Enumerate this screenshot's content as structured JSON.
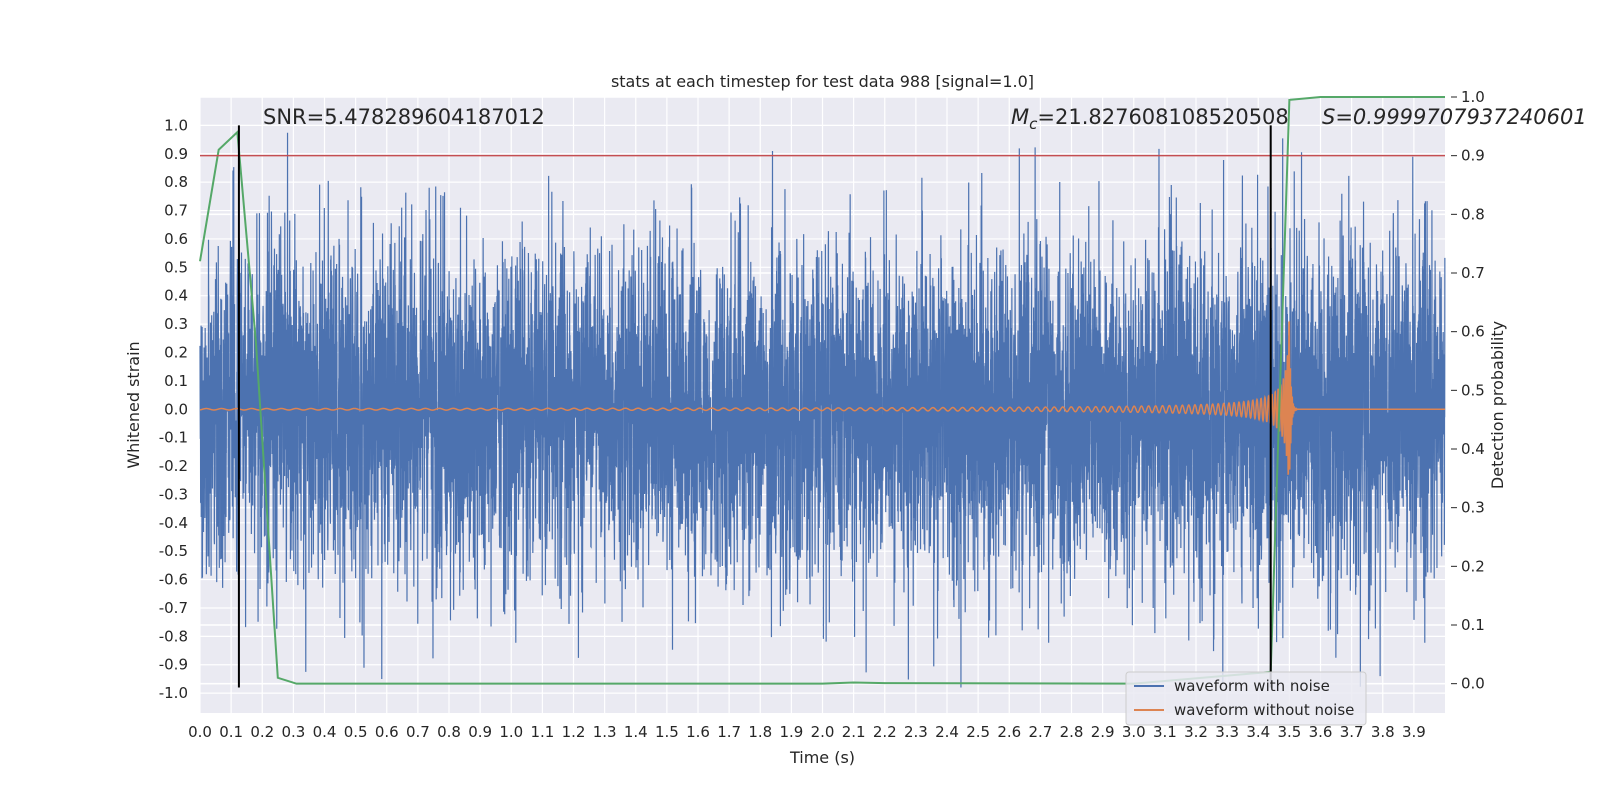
{
  "chart_data": {
    "type": "line",
    "title": "stats at each timestep for test data 988 [signal=1.0]",
    "xlabel": "Time (s)",
    "ylabel_left": "Whitened strain",
    "ylabel_right": "Detection probability",
    "xlim": [
      0.0,
      4.0
    ],
    "ylim_left": [
      -1.07,
      1.1
    ],
    "ylim_right": [
      -0.05,
      1.0
    ],
    "x_ticks": [
      "0.0",
      "0.1",
      "0.2",
      "0.3",
      "0.4",
      "0.5",
      "0.6",
      "0.7",
      "0.8",
      "0.9",
      "1.0",
      "1.1",
      "1.2",
      "1.3",
      "1.4",
      "1.5",
      "1.6",
      "1.7",
      "1.8",
      "1.9",
      "2.0",
      "2.1",
      "2.2",
      "2.3",
      "2.4",
      "2.5",
      "2.6",
      "2.7",
      "2.8",
      "2.9",
      "3.0",
      "3.1",
      "3.2",
      "3.3",
      "3.4",
      "3.5",
      "3.6",
      "3.7",
      "3.8",
      "3.9"
    ],
    "y_ticks_left": [
      "1.0",
      "0.9",
      "0.8",
      "0.7",
      "0.6",
      "0.5",
      "0.4",
      "0.3",
      "0.2",
      "0.1",
      "0.0",
      "-0.1",
      "-0.2",
      "-0.3",
      "-0.4",
      "-0.5",
      "-0.6",
      "-0.7",
      "-0.8",
      "-0.9",
      "-1.0"
    ],
    "y_ticks_right": [
      "1.0",
      "0.9",
      "0.8",
      "0.7",
      "0.6",
      "0.5",
      "0.4",
      "0.3",
      "0.2",
      "0.1",
      "0.0"
    ],
    "grid": true,
    "legend_position": "lower-right",
    "series": [
      {
        "name": "waveform with noise",
        "axis": "left",
        "color": "#4c72b0",
        "kind": "noise",
        "sample_rate": 2048,
        "amplitude_range": [
          -0.98,
          1.0
        ]
      },
      {
        "name": "waveform without noise",
        "axis": "left",
        "color": "#dd8452",
        "kind": "chirp",
        "merger_time": 3.5,
        "peak_amplitude": 0.31
      },
      {
        "axis": "right",
        "color": "#55a868",
        "x": [
          0.0,
          0.06,
          0.12,
          0.18,
          0.25,
          0.31,
          1.0,
          2.0,
          2.1,
          2.2,
          3.0,
          3.44,
          3.5,
          3.6,
          3.7,
          4.0
        ],
        "y": [
          0.72,
          0.91,
          0.94,
          0.58,
          0.01,
          0.0,
          0.0,
          0.0,
          0.002,
          0.001,
          0.0,
          0.02,
          0.995,
          1.0,
          1.0,
          1.0
        ]
      }
    ],
    "threshold_line": {
      "y": 0.9,
      "axis": "right",
      "color": "#c44e52"
    },
    "vertical_markers": [
      {
        "x": 0.125,
        "y_range": [
          -0.98,
          1.0
        ],
        "color": "#000000"
      },
      {
        "x": 3.44,
        "y_range": [
          -0.98,
          1.0
        ],
        "color": "#000000"
      }
    ],
    "annotations": {
      "snr": "SNR=5.478289604187012",
      "mc_symbol": "M",
      "mc_subscript": "c",
      "mc_value": "=21.827608108520508",
      "s_text": "S=0.9999707937240601"
    }
  },
  "colors": {
    "plot_background": "#eaeaf2",
    "grid": "#ffffff",
    "legend_background": "#eaeaf2"
  }
}
